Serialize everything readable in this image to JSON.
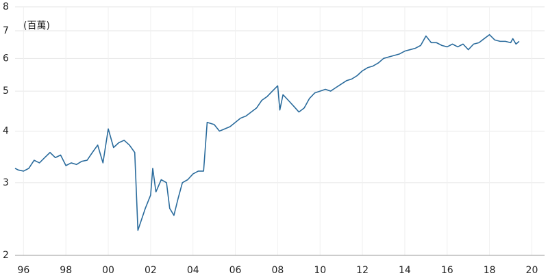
{
  "chart_data": {
    "type": "line",
    "annotation": "(百萬)",
    "log_scale": true,
    "grid": true,
    "color": "#2a6b9c",
    "xlim": [
      1995.6,
      2020.6
    ],
    "xticks": [
      {
        "value": 1996,
        "label": "96"
      },
      {
        "value": 1998,
        "label": "98"
      },
      {
        "value": 2000,
        "label": "00"
      },
      {
        "value": 2002,
        "label": "02"
      },
      {
        "value": 2004,
        "label": "04"
      },
      {
        "value": 2006,
        "label": "06"
      },
      {
        "value": 2008,
        "label": "08"
      },
      {
        "value": 2010,
        "label": "10"
      },
      {
        "value": 2012,
        "label": "12"
      },
      {
        "value": 2014,
        "label": "14"
      },
      {
        "value": 2016,
        "label": "16"
      },
      {
        "value": 2018,
        "label": "18"
      },
      {
        "value": 2020,
        "label": "20"
      }
    ],
    "ylim": [
      2,
      8
    ],
    "yticks": [
      2,
      3,
      4,
      5,
      6,
      7,
      8
    ],
    "x": [
      1995.6,
      1995.75,
      1996.0,
      1996.25,
      1996.5,
      1996.75,
      1997.0,
      1997.25,
      1997.5,
      1997.75,
      1998.0,
      1998.25,
      1998.5,
      1998.75,
      1999.0,
      1999.25,
      1999.5,
      1999.75,
      2000.0,
      2000.25,
      2000.5,
      2000.75,
      2001.0,
      2001.25,
      2001.4,
      2001.75,
      2002.0,
      2002.1,
      2002.25,
      2002.5,
      2002.75,
      2002.9,
      2003.1,
      2003.3,
      2003.5,
      2003.75,
      2004.0,
      2004.25,
      2004.5,
      2004.67,
      2005.0,
      2005.25,
      2005.5,
      2005.75,
      2006.0,
      2006.25,
      2006.5,
      2006.75,
      2007.0,
      2007.25,
      2007.5,
      2007.75,
      2008.0,
      2008.1,
      2008.25,
      2008.5,
      2008.75,
      2009.0,
      2009.25,
      2009.5,
      2009.75,
      2010.0,
      2010.25,
      2010.5,
      2010.75,
      2011.0,
      2011.25,
      2011.5,
      2011.75,
      2012.0,
      2012.25,
      2012.5,
      2012.75,
      2013.0,
      2013.25,
      2013.5,
      2013.75,
      2014.0,
      2014.25,
      2014.5,
      2014.75,
      2015.0,
      2015.25,
      2015.5,
      2015.75,
      2016.0,
      2016.25,
      2016.5,
      2016.75,
      2017.0,
      2017.25,
      2017.5,
      2017.75,
      2018.0,
      2018.25,
      2018.5,
      2018.75,
      2019.0,
      2019.1,
      2019.25,
      2019.4
    ],
    "values": [
      3.25,
      3.22,
      3.2,
      3.25,
      3.4,
      3.35,
      3.45,
      3.55,
      3.45,
      3.5,
      3.3,
      3.35,
      3.32,
      3.38,
      3.4,
      3.55,
      3.7,
      3.35,
      4.05,
      3.65,
      3.75,
      3.8,
      3.7,
      3.55,
      2.3,
      2.6,
      2.8,
      3.25,
      2.85,
      3.05,
      3.0,
      2.6,
      2.5,
      2.75,
      3.0,
      3.05,
      3.15,
      3.2,
      3.2,
      4.2,
      4.15,
      4.0,
      4.05,
      4.1,
      4.2,
      4.3,
      4.35,
      4.45,
      4.55,
      4.75,
      4.85,
      5.0,
      5.15,
      4.5,
      4.9,
      4.75,
      4.6,
      4.45,
      4.55,
      4.8,
      4.95,
      5.0,
      5.05,
      5.0,
      5.1,
      5.2,
      5.3,
      5.35,
      5.45,
      5.6,
      5.7,
      5.75,
      5.85,
      6.0,
      6.05,
      6.1,
      6.15,
      6.25,
      6.3,
      6.35,
      6.45,
      6.8,
      6.55,
      6.55,
      6.45,
      6.4,
      6.5,
      6.4,
      6.5,
      6.3,
      6.5,
      6.55,
      6.7,
      6.85,
      6.65,
      6.6,
      6.6,
      6.55,
      6.7,
      6.5,
      6.6
    ]
  }
}
